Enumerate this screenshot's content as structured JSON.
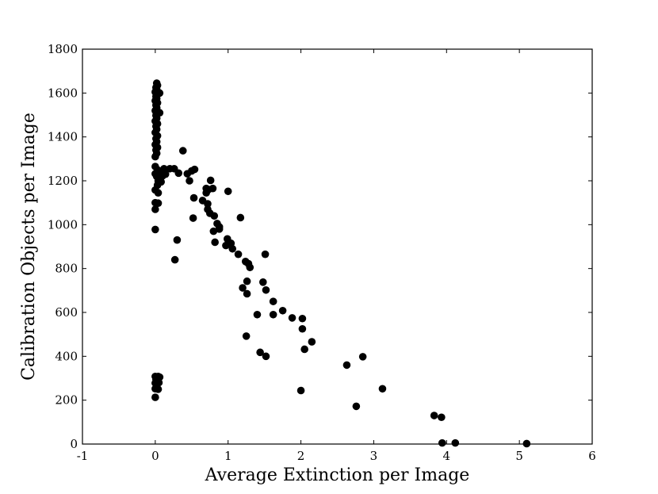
{
  "chart_data": {
    "type": "scatter",
    "title": "",
    "xlabel": "Average Extinction per Image",
    "ylabel": "Calibration Objects per Image",
    "xlim": [
      -1,
      6
    ],
    "ylim": [
      0,
      1800
    ],
    "xticks": [
      -1,
      0,
      1,
      2,
      3,
      4,
      5,
      6
    ],
    "yticks": [
      0,
      200,
      400,
      600,
      800,
      1000,
      1200,
      1400,
      1600,
      1800
    ],
    "grid": false,
    "marker_color": "#000000",
    "series": [
      {
        "points": [
          [
            0.02,
            1645
          ],
          [
            0.03,
            1635
          ],
          [
            0.01,
            1625
          ],
          [
            0.02,
            1615
          ],
          [
            0.0,
            1605
          ],
          [
            0.03,
            1598
          ],
          [
            0.06,
            1600
          ],
          [
            0.01,
            1585
          ],
          [
            0.02,
            1575
          ],
          [
            0.0,
            1565
          ],
          [
            0.03,
            1555
          ],
          [
            0.01,
            1545
          ],
          [
            0.02,
            1532
          ],
          [
            0.0,
            1520
          ],
          [
            0.03,
            1510
          ],
          [
            0.06,
            1510
          ],
          [
            0.01,
            1498
          ],
          [
            0.02,
            1485
          ],
          [
            0.0,
            1472
          ],
          [
            0.03,
            1460
          ],
          [
            0.01,
            1448
          ],
          [
            0.02,
            1435
          ],
          [
            0.0,
            1420
          ],
          [
            0.03,
            1405
          ],
          [
            0.01,
            1392
          ],
          [
            0.02,
            1378
          ],
          [
            0.0,
            1365
          ],
          [
            0.03,
            1352
          ],
          [
            0.01,
            1340
          ],
          [
            0.02,
            1325
          ],
          [
            0.0,
            1310
          ],
          [
            0.38,
            1337
          ],
          [
            0.0,
            1265
          ],
          [
            0.03,
            1250
          ],
          [
            0.06,
            1230
          ],
          [
            0.12,
            1255
          ],
          [
            0.2,
            1255
          ],
          [
            0.26,
            1255
          ],
          [
            0.32,
            1235
          ],
          [
            0.0,
            1232
          ],
          [
            0.02,
            1220
          ],
          [
            0.05,
            1215
          ],
          [
            0.1,
            1222
          ],
          [
            0.14,
            1230
          ],
          [
            0.44,
            1232
          ],
          [
            0.5,
            1245
          ],
          [
            0.54,
            1252
          ],
          [
            0.04,
            1200
          ],
          [
            0.03,
            1180
          ],
          [
            0.08,
            1195
          ],
          [
            0.47,
            1200
          ],
          [
            0.76,
            1202
          ],
          [
            0.0,
            1158
          ],
          [
            0.04,
            1145
          ],
          [
            0.7,
            1165
          ],
          [
            0.73,
            1160
          ],
          [
            0.7,
            1145
          ],
          [
            0.79,
            1165
          ],
          [
            1.0,
            1152
          ],
          [
            0.53,
            1122
          ],
          [
            0.65,
            1110
          ],
          [
            0.72,
            1095
          ],
          [
            0.0,
            1100
          ],
          [
            0.04,
            1098
          ],
          [
            0.0,
            1070
          ],
          [
            0.72,
            1070
          ],
          [
            0.75,
            1052
          ],
          [
            0.81,
            1040
          ],
          [
            0.52,
            1030
          ],
          [
            1.17,
            1032
          ],
          [
            0.85,
            1005
          ],
          [
            0.88,
            990
          ],
          [
            0.88,
            980
          ],
          [
            0.8,
            970
          ],
          [
            0.0,
            978
          ],
          [
            0.99,
            935
          ],
          [
            1.04,
            915
          ],
          [
            0.3,
            930
          ],
          [
            0.82,
            920
          ],
          [
            0.97,
            905
          ],
          [
            1.06,
            890
          ],
          [
            1.14,
            865
          ],
          [
            1.51,
            865
          ],
          [
            0.27,
            840
          ],
          [
            1.24,
            832
          ],
          [
            1.28,
            822
          ],
          [
            1.3,
            805
          ],
          [
            1.26,
            742
          ],
          [
            1.48,
            738
          ],
          [
            1.2,
            712
          ],
          [
            1.52,
            702
          ],
          [
            1.26,
            685
          ],
          [
            1.62,
            650
          ],
          [
            1.75,
            608
          ],
          [
            1.4,
            590
          ],
          [
            1.62,
            590
          ],
          [
            1.88,
            575
          ],
          [
            2.02,
            572
          ],
          [
            2.02,
            525
          ],
          [
            1.25,
            492
          ],
          [
            2.15,
            466
          ],
          [
            2.05,
            432
          ],
          [
            1.44,
            418
          ],
          [
            1.52,
            400
          ],
          [
            2.85,
            398
          ],
          [
            2.63,
            360
          ],
          [
            3.12,
            252
          ],
          [
            2.0,
            244
          ],
          [
            2.76,
            172
          ],
          [
            3.83,
            130
          ],
          [
            3.93,
            122
          ],
          [
            3.94,
            5
          ],
          [
            4.12,
            5
          ],
          [
            5.1,
            2
          ],
          [
            0.0,
            308
          ],
          [
            0.04,
            308
          ],
          [
            0.06,
            305
          ],
          [
            0.01,
            295
          ],
          [
            0.03,
            288
          ],
          [
            0.0,
            278
          ],
          [
            0.05,
            280
          ],
          [
            0.02,
            268
          ],
          [
            0.0,
            252
          ],
          [
            0.04,
            250
          ],
          [
            0.0,
            213
          ]
        ]
      }
    ]
  }
}
